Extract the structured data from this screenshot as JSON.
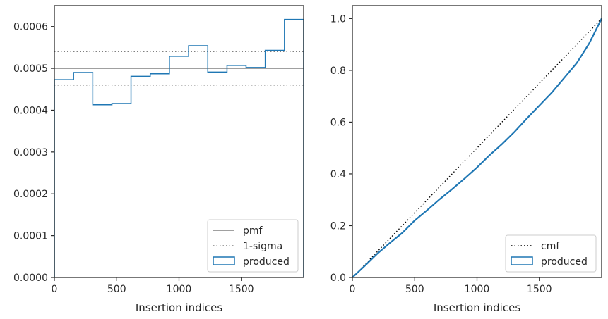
{
  "chart_data": [
    {
      "type": "histogram-step",
      "xlabel": "Insertion indices",
      "ylabel": "",
      "xlim": [
        0,
        2000
      ],
      "ylim": [
        0,
        0.00065
      ],
      "xticks": [
        0,
        500,
        1000,
        1500
      ],
      "xtick_labels": [
        "0",
        "500",
        "1000",
        "1500"
      ],
      "yticks": [
        0,
        0.0001,
        0.0002,
        0.0003,
        0.0004,
        0.0005,
        0.0006
      ],
      "ytick_labels": [
        "0.0000",
        "0.0001",
        "0.0002",
        "0.0003",
        "0.0004",
        "0.0005",
        "0.0006"
      ],
      "bin_edges": [
        0,
        154,
        308,
        462,
        615,
        769,
        923,
        1077,
        1231,
        1385,
        1538,
        1692,
        1846,
        2000
      ],
      "series": [
        {
          "name": "produced",
          "color": "#1f77b4",
          "values": [
            0.000473,
            0.00049,
            0.000413,
            0.000416,
            0.000481,
            0.000487,
            0.000529,
            0.000554,
            0.000491,
            0.000507,
            0.000502,
            0.000543,
            0.000617
          ]
        }
      ],
      "reference_lines": [
        {
          "name": "pmf",
          "y": 0.0005,
          "style": "solid",
          "color": "#808080"
        },
        {
          "name": "1-sigma",
          "y": 0.00054,
          "style": "dotted",
          "color": "#808080"
        },
        {
          "name": "1-sigma",
          "y": 0.00046,
          "style": "dotted",
          "color": "#808080"
        }
      ],
      "legend": {
        "position": "lower-right",
        "entries": [
          "pmf",
          "1-sigma",
          "produced"
        ]
      },
      "grid": false
    },
    {
      "type": "line",
      "xlabel": "Insertion indices",
      "ylabel": "",
      "xlim": [
        0,
        2000
      ],
      "ylim": [
        0,
        1.05
      ],
      "xticks": [
        0,
        500,
        1000,
        1500
      ],
      "xtick_labels": [
        "0",
        "500",
        "1000",
        "1500"
      ],
      "yticks": [
        0,
        0.2,
        0.4,
        0.6,
        0.8,
        1.0
      ],
      "ytick_labels": [
        "0.0",
        "0.2",
        "0.4",
        "0.6",
        "0.8",
        "1.0"
      ],
      "series": [
        {
          "name": "cmf",
          "style": "dotted",
          "color": "#000000",
          "x": [
            0,
            2000
          ],
          "y": [
            0,
            1.0
          ]
        },
        {
          "name": "produced",
          "style": "solid",
          "color": "#1f77b4",
          "x": [
            0,
            100,
            200,
            300,
            400,
            500,
            600,
            700,
            800,
            900,
            1000,
            1100,
            1200,
            1300,
            1400,
            1500,
            1600,
            1700,
            1800,
            1900,
            2000
          ],
          "y": [
            0,
            0.045,
            0.092,
            0.133,
            0.172,
            0.22,
            0.26,
            0.302,
            0.341,
            0.382,
            0.425,
            0.472,
            0.515,
            0.562,
            0.614,
            0.664,
            0.714,
            0.771,
            0.828,
            0.904,
            1.0
          ]
        }
      ],
      "legend": {
        "position": "lower-right",
        "entries": [
          "cmf",
          "produced"
        ]
      },
      "grid": false
    }
  ]
}
